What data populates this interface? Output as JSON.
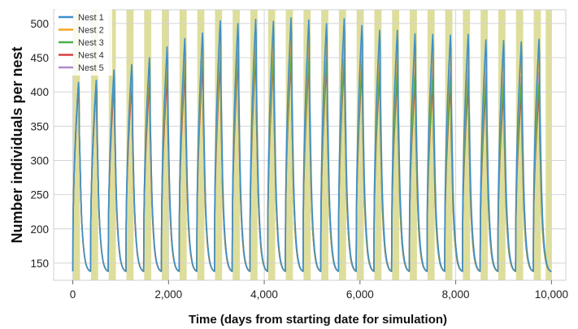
{
  "chart_data": {
    "type": "line",
    "title": "",
    "xlabel": "Time (days from starting date for simulation)",
    "ylabel": "Number individuals per nest",
    "xlim": [
      -400,
      10300
    ],
    "ylim": [
      125,
      520
    ],
    "x_ticks": [
      0,
      2000,
      4000,
      6000,
      8000,
      10000
    ],
    "x_tick_labels": [
      "0",
      "2,000",
      "4,000",
      "6,000",
      "8,000",
      "10,000"
    ],
    "y_ticks": [
      150,
      200,
      250,
      300,
      350,
      400,
      450,
      500
    ],
    "y_tick_labels": [
      "150",
      "200",
      "250",
      "300",
      "350",
      "400",
      "450",
      "500"
    ],
    "grid": true,
    "legend_position": "top-left",
    "shaded_season_band_color": "#dede9c",
    "shaded_bands": [
      [
        0,
        150
      ],
      [
        380,
        530
      ],
      [
        750,
        900
      ],
      [
        1120,
        1270
      ],
      [
        1490,
        1640
      ],
      [
        1860,
        2010
      ],
      [
        2230,
        2380
      ],
      [
        2600,
        2750
      ],
      [
        2970,
        3120
      ],
      [
        3340,
        3490
      ],
      [
        3710,
        3860
      ],
      [
        4080,
        4230
      ],
      [
        4450,
        4600
      ],
      [
        4820,
        4970
      ],
      [
        5190,
        5340
      ],
      [
        5560,
        5710
      ],
      [
        5930,
        6080
      ],
      [
        6300,
        6450
      ],
      [
        6670,
        6820
      ],
      [
        7040,
        7190
      ],
      [
        7410,
        7560
      ],
      [
        7780,
        7930
      ],
      [
        8150,
        8300
      ],
      [
        8520,
        8670
      ],
      [
        8890,
        9040
      ],
      [
        9260,
        9410
      ],
      [
        9630,
        9780
      ],
      [
        9880,
        10000
      ]
    ],
    "cycle_period_days": 370,
    "cycle_rise_days": 120,
    "trough_value": 138,
    "cycle_start_days": [
      0,
      370,
      740,
      1110,
      1480,
      1850,
      2220,
      2590,
      2960,
      3330,
      3700,
      4070,
      4440,
      4810,
      5180,
      5550,
      5920,
      6290,
      6660,
      7030,
      7400,
      7770,
      8140,
      8510,
      8880,
      9250,
      9620
    ],
    "series": [
      {
        "name": "Nest 1",
        "color": "#3c8fcc",
        "peaks": [
          414,
          417,
          432,
          440,
          450,
          466,
          478,
          486,
          504,
          500,
          506,
          503,
          508,
          505,
          500,
          507,
          497,
          490,
          490,
          485,
          484,
          483,
          484,
          476,
          475,
          473,
          477
        ]
      },
      {
        "name": "Nest 2",
        "color": "#f5a623",
        "peaks": [
          414,
          415,
          425,
          430,
          440,
          453,
          462,
          470,
          480,
          482,
          485,
          480,
          486,
          480,
          478,
          484,
          475,
          470,
          470,
          465,
          465,
          463,
          463,
          458,
          456,
          454,
          458
        ]
      },
      {
        "name": "Nest 3",
        "color": "#4aae4a",
        "peaks": [
          413,
          412,
          420,
          424,
          430,
          440,
          447,
          452,
          457,
          458,
          458,
          452,
          455,
          448,
          445,
          448,
          440,
          432,
          430,
          425,
          421,
          420,
          420,
          415,
          412,
          412,
          412
        ]
      },
      {
        "name": "Nest 4",
        "color": "#d94040",
        "peaks": [
          406,
          405,
          405,
          407,
          410,
          420,
          428,
          435,
          440,
          442,
          446,
          440,
          444,
          437,
          433,
          437,
          428,
          420,
          418,
          412,
          408,
          405,
          405,
          400,
          397,
          396,
          398
        ]
      },
      {
        "name": "Nest 5",
        "color": "#b08ac9",
        "peaks": [
          414,
          414,
          422,
          428,
          437,
          447,
          456,
          462,
          468,
          470,
          472,
          465,
          469,
          462,
          458,
          462,
          455,
          448,
          445,
          438,
          436,
          432,
          432,
          427,
          424,
          422,
          428
        ]
      }
    ]
  }
}
